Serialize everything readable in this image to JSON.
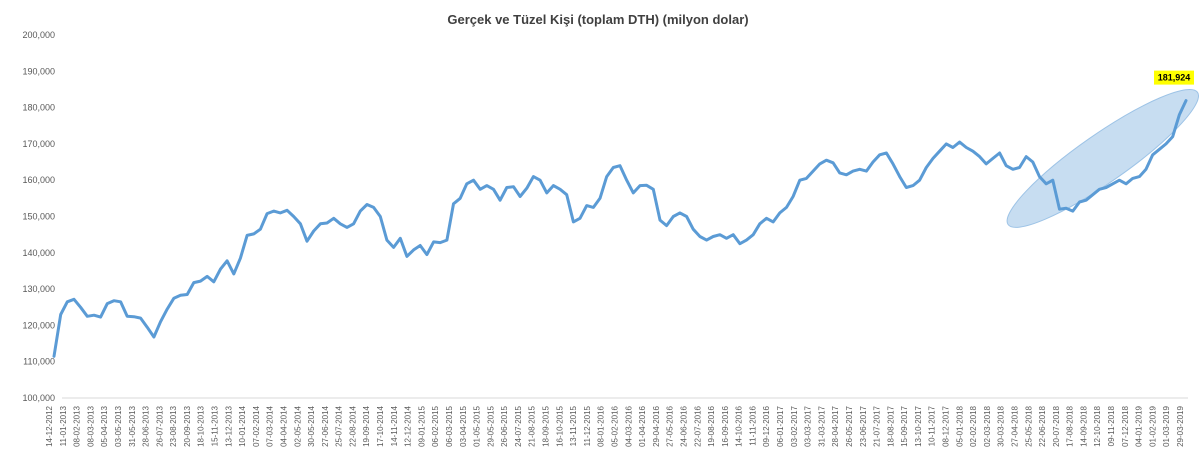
{
  "chart_data": {
    "type": "line",
    "title": "Gerçek ve Tüzel Kişi (toplam DTH) (milyon dolar)",
    "xlabel": "",
    "ylabel": "",
    "ylim": [
      100000,
      200000
    ],
    "yticks": [
      "100,000",
      "110,000",
      "120,000",
      "130,000",
      "140,000",
      "150,000",
      "160,000",
      "170,000",
      "180,000",
      "190,000",
      "200,000"
    ],
    "grid": false,
    "legend": "none",
    "x_labels": [
      "14-12-2012",
      "11-01-2013",
      "08-02-2013",
      "08-03-2013",
      "05-04-2013",
      "03-05-2013",
      "31-05-2013",
      "28-06-2013",
      "26-07-2013",
      "23-08-2013",
      "20-09-2013",
      "18-10-2013",
      "15-11-2013",
      "13-12-2013",
      "10-01-2014",
      "07-02-2014",
      "07-03-2014",
      "04-04-2014",
      "02-05-2014",
      "30-05-2014",
      "27-06-2014",
      "25-07-2014",
      "22-08-2014",
      "19-09-2014",
      "17-10-2014",
      "14-11-2014",
      "12-12-2014",
      "09-01-2015",
      "06-02-2015",
      "06-03-2015",
      "03-04-2015",
      "01-05-2015",
      "29-05-2015",
      "26-06-2015",
      "24-07-2015",
      "21-08-2015",
      "18-09-2015",
      "16-10-2015",
      "13-11-2015",
      "11-12-2015",
      "08-01-2016",
      "05-02-2016",
      "04-03-2016",
      "01-04-2016",
      "29-04-2016",
      "27-05-2016",
      "24-06-2016",
      "22-07-2016",
      "19-08-2016",
      "16-09-2016",
      "14-10-2016",
      "11-11-2016",
      "09-12-2016",
      "06-01-2017",
      "03-02-2017",
      "03-03-2017",
      "31-03-2017",
      "28-04-2017",
      "26-05-2017",
      "23-06-2017",
      "21-07-2017",
      "18-08-2017",
      "15-09-2017",
      "13-10-2017",
      "10-11-2017",
      "08-12-2017",
      "05-01-2018",
      "02-02-2018",
      "02-03-2018",
      "30-03-2018",
      "27-04-2018",
      "25-05-2018",
      "22-06-2018",
      "20-07-2018",
      "17-08-2018",
      "14-09-2018",
      "12-10-2018",
      "09-11-2018",
      "07-12-2018",
      "04-01-2019",
      "01-02-2019",
      "01-03-2019",
      "29-03-2019"
    ],
    "series": [
      {
        "name": "",
        "color": "#5B9BD5",
        "values": [
          111500,
          123000,
          126500,
          127200,
          125000,
          122500,
          122800,
          122300,
          126000,
          126800,
          126500,
          122500,
          122400,
          122000,
          119500,
          116800,
          121000,
          124500,
          127500,
          128300,
          128500,
          131800,
          132200,
          133500,
          132000,
          135500,
          137800,
          134200,
          138500,
          144800,
          145200,
          146500,
          150800,
          151500,
          151000,
          151700,
          150000,
          148000,
          143200,
          146000,
          148000,
          148200,
          149500,
          148000,
          147000,
          148000,
          151500,
          153300,
          152500,
          150000,
          143500,
          141500,
          144000,
          139000,
          140800,
          142000,
          139500,
          143000,
          142800,
          143500,
          153500,
          155000,
          159000,
          160000,
          157500,
          158500,
          157500,
          154500,
          158000,
          158200,
          155500,
          157800,
          161000,
          160000,
          156500,
          158500,
          157500,
          156000,
          148500,
          149500,
          153000,
          152500,
          155000,
          161000,
          163500,
          164000,
          160000,
          156500,
          158500,
          158600,
          157500,
          149000,
          147500,
          150000,
          151000,
          150000,
          146500,
          144500,
          143500,
          144500,
          145000,
          144000,
          145000,
          142500,
          143500,
          145000,
          148000,
          149500,
          148500,
          151000,
          152500,
          155500,
          160000,
          160500,
          162500,
          164500,
          165500,
          164800,
          162000,
          161500,
          162500,
          163000,
          162500,
          165000,
          167000,
          167500,
          164500,
          161000,
          158000,
          158500,
          160000,
          163500,
          166000,
          168000,
          170000,
          169000,
          170500,
          169000,
          168000,
          166500,
          164500,
          166000,
          167500,
          164000,
          163000,
          163500,
          166500,
          165000,
          161000,
          159000,
          160000,
          152000,
          152300,
          151500,
          154000,
          154500,
          156000,
          157500,
          158000,
          159000,
          160000,
          159000,
          160500,
          161000,
          163000,
          167000,
          168500,
          170000,
          172000,
          178000,
          181924
        ]
      }
    ],
    "annotation": {
      "label": "181,924",
      "highlight": "#FFFF00"
    },
    "ellipse_fill": "#BDD7EE"
  }
}
